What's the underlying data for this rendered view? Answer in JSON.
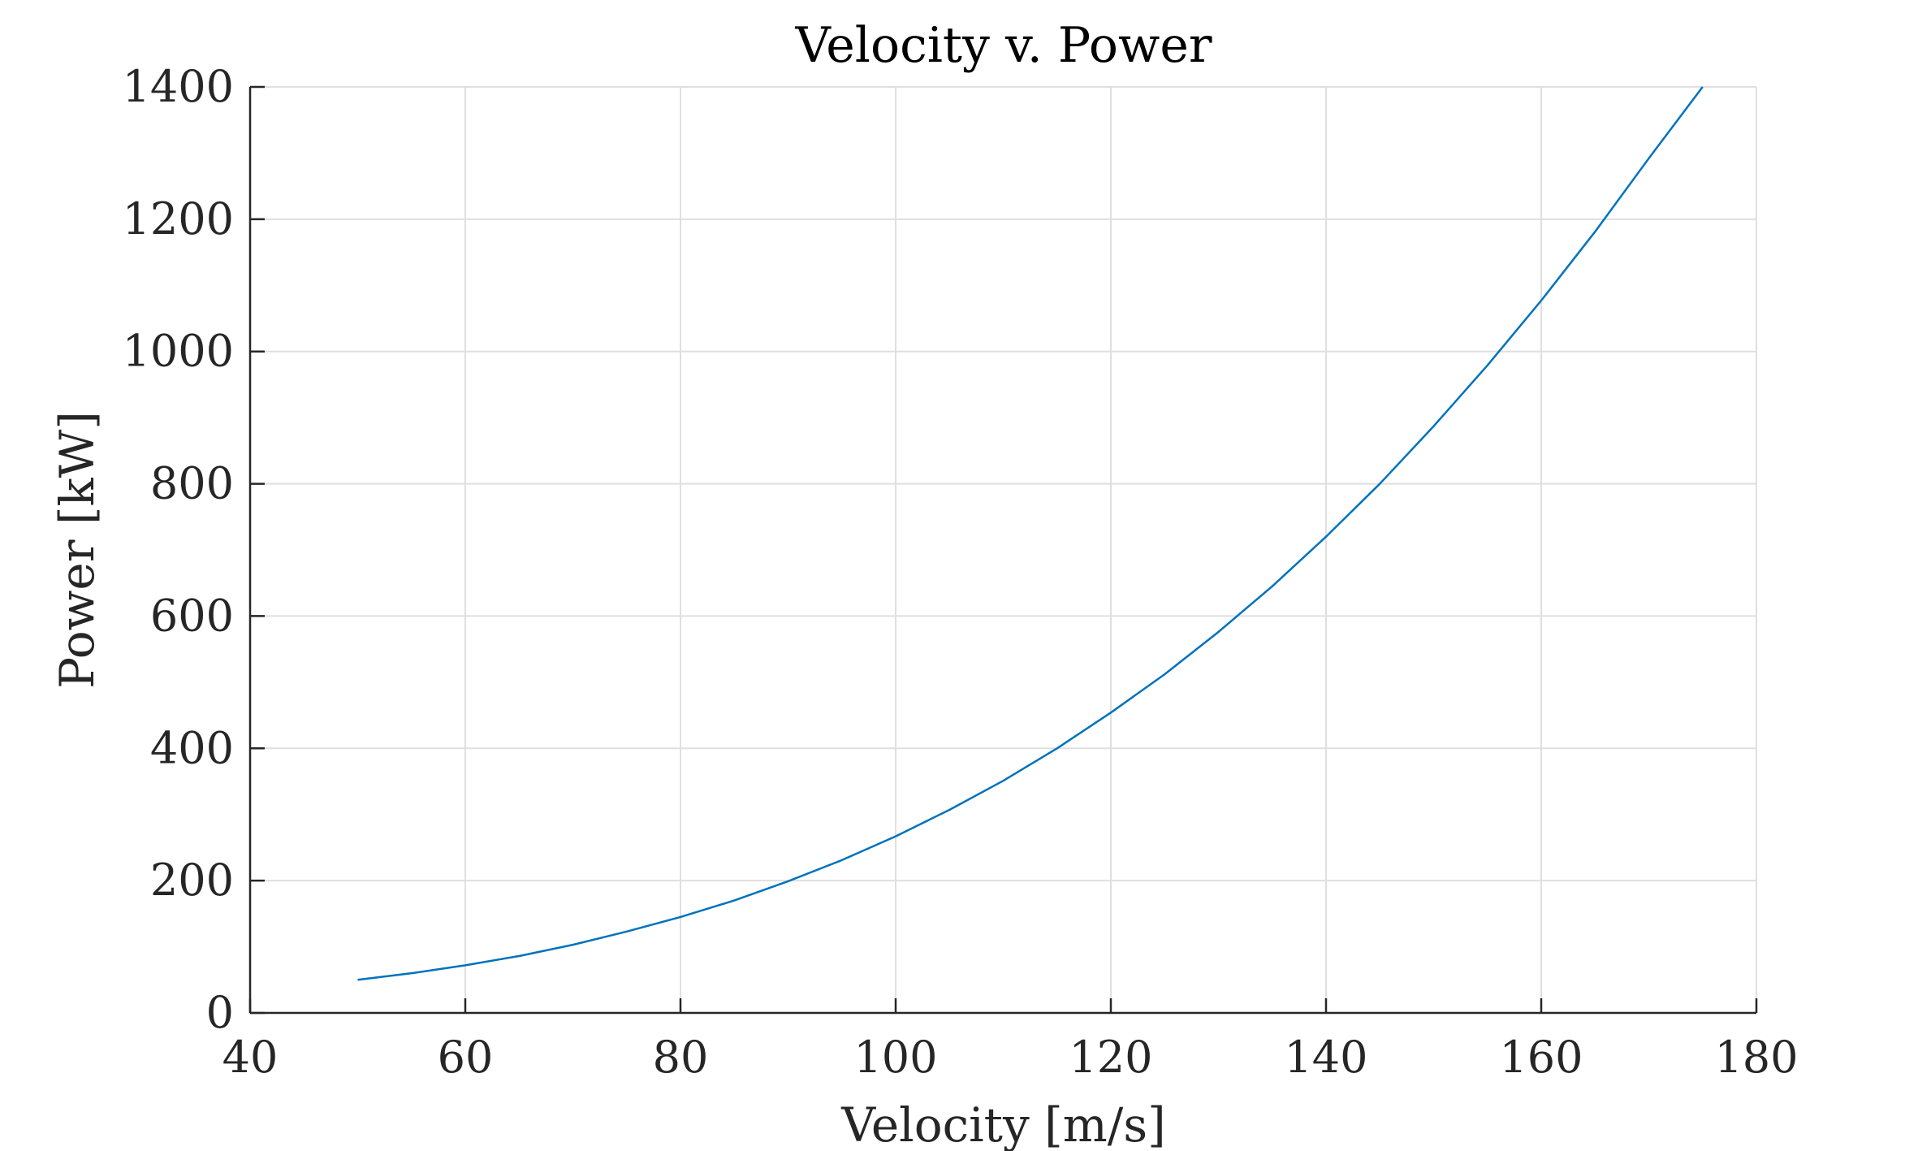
{
  "chart_data": {
    "type": "line",
    "title": "Velocity v. Power",
    "xlabel": "Velocity [m/s]",
    "ylabel": "Power [kW]",
    "xlim": [
      40,
      180
    ],
    "ylim": [
      0,
      1400
    ],
    "xticks": [
      40,
      60,
      80,
      100,
      120,
      140,
      160,
      180
    ],
    "yticks": [
      0,
      200,
      400,
      600,
      800,
      1000,
      1200,
      1400
    ],
    "grid": true,
    "legend": "none",
    "series": [
      {
        "color": "#0072BD",
        "x": [
          50,
          55,
          60,
          65,
          70,
          75,
          80,
          85,
          90,
          95,
          100,
          105,
          110,
          115,
          120,
          125,
          130,
          135,
          140,
          145,
          150,
          155,
          160,
          165,
          170,
          175
        ],
        "y": [
          50,
          60,
          72,
          86,
          103,
          123,
          145,
          170,
          199,
          231,
          267,
          307,
          351,
          400,
          454,
          512,
          576,
          645,
          720,
          800,
          887,
          979,
          1077,
          1181,
          1292,
          1400
        ]
      }
    ]
  }
}
